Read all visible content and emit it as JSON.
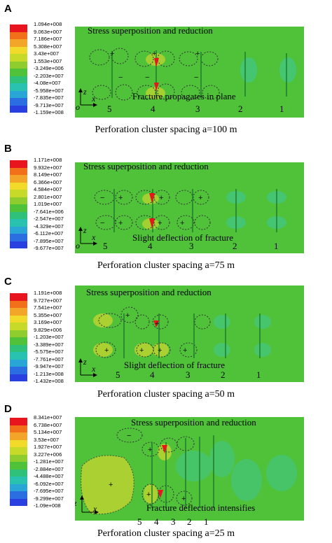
{
  "field_color": "#4fc23a",
  "legend_colors": [
    "#e8141e",
    "#f2701a",
    "#f3a52a",
    "#f2da2a",
    "#c7d929",
    "#8fcc2e",
    "#4fc23a",
    "#2fc07a",
    "#29c1b0",
    "#2aa6d6",
    "#2a6ee2",
    "#2a3fdf"
  ],
  "panels": [
    {
      "label": "A",
      "legend": [
        "1.094e+008",
        "9.063e+007",
        "7.186e+007",
        "5.308e+007",
        "3.43e+007",
        "1.553e+007",
        "-3.249e+006",
        "-2.203e+007",
        "-4.08e+007",
        "-5.958e+007",
        "-7.835e+007",
        "-9.713e+007",
        "-1.159e+008"
      ],
      "annotation_top": "Stress superposition and reduction",
      "annotation_bottom": "Fracture propagates in plane",
      "cluster_numbers": [
        "5",
        "4",
        "3",
        "2",
        "1"
      ],
      "caption": "Perforation cluster spacing a=100 m"
    },
    {
      "label": "B",
      "legend": [
        "1.171e+008",
        "9.932e+007",
        "8.149e+007",
        "6.366e+007",
        "4.584e+007",
        "2.801e+007",
        "1.019e+007",
        "-7.641e+006",
        "-2.547e+007",
        "-4.329e+007",
        "-6.112e+007",
        "-7.895e+007",
        "-9.677e+007"
      ],
      "annotation_top": "Stress superposition and reduction",
      "annotation_bottom": "Slight deflection of fracture",
      "cluster_numbers": [
        "5",
        "4",
        "3",
        "2",
        "1"
      ],
      "caption": "Perforation cluster spacing a=75 m"
    },
    {
      "label": "C",
      "legend": [
        "1.191e+008",
        "9.727e+007",
        "7.541e+007",
        "5.355e+007",
        "3.169e+007",
        "9.829e+006",
        "-1.203e+007",
        "-3.389e+007",
        "-5.575e+007",
        "-7.761e+007",
        "-9.947e+007",
        "-1.213e+008",
        "-1.432e+008"
      ],
      "annotation_top": "Stress superposition and reduction",
      "annotation_bottom": "Slight deflection of fracture",
      "cluster_numbers": [
        "5",
        "4",
        "3",
        "2",
        "1"
      ],
      "caption": "Perforation cluster spacing a=50 m"
    },
    {
      "label": "D",
      "legend": [
        "8.341e+007",
        "6.738e+007",
        "5.134e+007",
        "3.53e+007",
        "1.927e+007",
        "3.227e+006",
        "-1.281e+007",
        "-2.884e+007",
        "-4.488e+007",
        "-6.092e+007",
        "-7.695e+007",
        "-9.299e+007",
        "-1.09e+008"
      ],
      "annotation_top": "Stress superposition and reduction",
      "annotation_bottom": "Fracture deflection intensifies",
      "cluster_numbers": [
        "5",
        "4",
        "3",
        "2",
        "1"
      ],
      "caption": "Perforation cluster spacing a=25 m"
    }
  ],
  "axis_labels": {
    "z": "z",
    "x": "x",
    "o": "o"
  }
}
